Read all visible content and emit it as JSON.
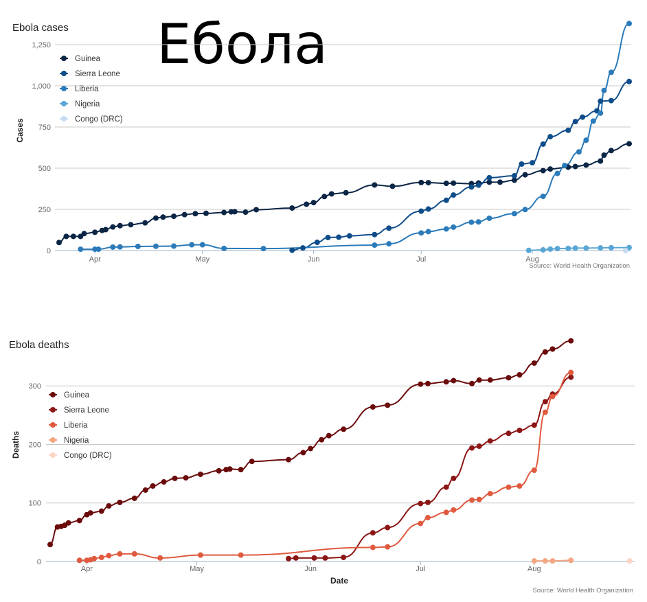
{
  "overlay_title": "Ебола",
  "chart_data": [
    {
      "type": "line",
      "title": "Ebola cases",
      "xlabel": "",
      "ylabel": "Cases",
      "ylim": [
        0,
        1250
      ],
      "yticks": [
        "0",
        "250",
        "500",
        "750",
        "1,000",
        "1,250"
      ],
      "x_tick_labels": [
        "Apr",
        "May",
        "Jun",
        "Jul",
        "Aug"
      ],
      "x_tick_dates": [
        "2014-04-01",
        "2014-05-01",
        "2014-06-01",
        "2014-07-01",
        "2014-08-01"
      ],
      "x_range": [
        "2014-03-22",
        "2014-08-28"
      ],
      "grid": true,
      "legend_position": "top-left",
      "source": "Source: World Health Organization",
      "series": [
        {
          "name": "Guinea",
          "color": "#0b2545",
          "points": [
            [
              "2014-03-22",
              49
            ],
            [
              "2014-03-24",
              86
            ],
            [
              "2014-03-26",
              86
            ],
            [
              "2014-03-28",
              86
            ],
            [
              "2014-03-29",
              103
            ],
            [
              "2014-04-01",
              111
            ],
            [
              "2014-04-03",
              122
            ],
            [
              "2014-04-04",
              127
            ],
            [
              "2014-04-06",
              143
            ],
            [
              "2014-04-08",
              151
            ],
            [
              "2014-04-11",
              157
            ],
            [
              "2014-04-15",
              168
            ],
            [
              "2014-04-18",
              197
            ],
            [
              "2014-04-20",
              203
            ],
            [
              "2014-04-23",
              208
            ],
            [
              "2014-04-26",
              218
            ],
            [
              "2014-04-29",
              224
            ],
            [
              "2014-05-02",
              226
            ],
            [
              "2014-05-07",
              231
            ],
            [
              "2014-05-09",
              235
            ],
            [
              "2014-05-10",
              236
            ],
            [
              "2014-05-13",
              233
            ],
            [
              "2014-05-16",
              248
            ],
            [
              "2014-05-26",
              258
            ],
            [
              "2014-05-30",
              281
            ],
            [
              "2014-06-01",
              291
            ],
            [
              "2014-06-04",
              328
            ],
            [
              "2014-06-06",
              344
            ],
            [
              "2014-06-10",
              351
            ],
            [
              "2014-06-18",
              398
            ],
            [
              "2014-06-23",
              390
            ],
            [
              "2014-07-01",
              413
            ],
            [
              "2014-07-03",
              412
            ],
            [
              "2014-07-08",
              408
            ],
            [
              "2014-07-10",
              409
            ],
            [
              "2014-07-15",
              406
            ],
            [
              "2014-07-17",
              410
            ],
            [
              "2014-07-20",
              415
            ],
            [
              "2014-07-23",
              415
            ],
            [
              "2014-07-27",
              427
            ],
            [
              "2014-07-30",
              460
            ],
            [
              "2014-08-04",
              485
            ],
            [
              "2014-08-06",
              495
            ],
            [
              "2014-08-11",
              506
            ],
            [
              "2014-08-13",
              510
            ],
            [
              "2014-08-16",
              519
            ],
            [
              "2014-08-20",
              543
            ],
            [
              "2014-08-21",
              579
            ],
            [
              "2014-08-23",
              607
            ],
            [
              "2014-08-28",
              648
            ]
          ]
        },
        {
          "name": "Sierra Leone",
          "color": "#0f4d8a",
          "points": [
            [
              "2014-05-26",
              2
            ],
            [
              "2014-05-29",
              16
            ],
            [
              "2014-06-02",
              50
            ],
            [
              "2014-06-05",
              79
            ],
            [
              "2014-06-08",
              81
            ],
            [
              "2014-06-11",
              89
            ],
            [
              "2014-06-18",
              97
            ],
            [
              "2014-06-22",
              136
            ],
            [
              "2014-07-01",
              239
            ],
            [
              "2014-07-03",
              252
            ],
            [
              "2014-07-08",
              305
            ],
            [
              "2014-07-10",
              337
            ],
            [
              "2014-07-15",
              386
            ],
            [
              "2014-07-17",
              397
            ],
            [
              "2014-07-20",
              442
            ],
            [
              "2014-07-27",
              454
            ],
            [
              "2014-07-29",
              525
            ],
            [
              "2014-08-01",
              533
            ],
            [
              "2014-08-04",
              646
            ],
            [
              "2014-08-06",
              691
            ],
            [
              "2014-08-11",
              730
            ],
            [
              "2014-08-13",
              783
            ],
            [
              "2014-08-15",
              810
            ],
            [
              "2014-08-19",
              848
            ],
            [
              "2014-08-20",
              907
            ],
            [
              "2014-08-23",
              910
            ],
            [
              "2014-08-28",
              1026
            ]
          ]
        },
        {
          "name": "Liberia",
          "color": "#2b7bba",
          "points": [
            [
              "2014-03-28",
              8
            ],
            [
              "2014-04-01",
              8
            ],
            [
              "2014-04-02",
              8
            ],
            [
              "2014-04-06",
              21
            ],
            [
              "4/8",
              0
            ],
            [
              "2014-04-08",
              22
            ],
            [
              "2014-04-13",
              25
            ],
            [
              "2014-04-18",
              26
            ],
            [
              "2014-04-23",
              27
            ],
            [
              "2014-04-28",
              35
            ],
            [
              "2014-05-01",
              35
            ],
            [
              "2014-05-07",
              13
            ],
            [
              "2014-05-18",
              12
            ],
            [
              "2014-06-18",
              33
            ],
            [
              "2014-06-22",
              41
            ],
            [
              "2014-07-01",
              107
            ],
            [
              "2014-07-03",
              115
            ],
            [
              "2014-07-08",
              131
            ],
            [
              "2014-07-10",
              142
            ],
            [
              "2014-07-15",
              172
            ],
            [
              "2014-07-17",
              174
            ],
            [
              "2014-07-20",
              196
            ],
            [
              "2014-07-27",
              224
            ],
            [
              "2014-07-30",
              249
            ],
            [
              "2014-08-04",
              329
            ],
            [
              "2014-08-08",
              468
            ],
            [
              "2014-08-10",
              516
            ],
            [
              "2014-08-14",
              599
            ],
            [
              "2014-08-16",
              670
            ],
            [
              "2014-08-18",
              786
            ],
            [
              "2014-08-20",
              834
            ],
            [
              "2014-08-21",
              972
            ],
            [
              "2014-08-23",
              1082
            ],
            [
              "2014-08-28",
              1378
            ]
          ]
        },
        {
          "name": "Nigeria",
          "color": "#5aa6d6",
          "points": [
            [
              "2014-07-31",
              1
            ],
            [
              "2014-08-04",
              4
            ],
            [
              "2014-08-06",
              9
            ],
            [
              "2014-08-08",
              12
            ],
            [
              "2014-08-11",
              13
            ],
            [
              "2014-08-13",
              15
            ],
            [
              "2014-08-16",
              15
            ],
            [
              "2014-08-20",
              16
            ],
            [
              "2014-08-23",
              17
            ],
            [
              "2014-08-28",
              18
            ]
          ]
        },
        {
          "name": "Congo (DRC)",
          "color": "#c6dbef",
          "points": [
            [
              "2014-08-27",
              0
            ]
          ]
        }
      ]
    },
    {
      "type": "line",
      "title": "Ebola deaths",
      "xlabel": "Date",
      "ylabel": "Deaths",
      "ylim": [
        0,
        380
      ],
      "yticks": [
        "0",
        "100",
        "200",
        "300"
      ],
      "x_tick_labels": [
        "Apr",
        "May",
        "Jun",
        "Jul",
        "Aug"
      ],
      "x_tick_dates": [
        "2014-04-01",
        "2014-05-01",
        "2014-06-01",
        "2014-07-01",
        "2014-08-01"
      ],
      "x_range": [
        "2014-03-22",
        "2014-08-28"
      ],
      "grid": true,
      "legend_position": "top-left",
      "source": "Source: World Health Organization",
      "series": [
        {
          "name": "Guinea",
          "color": "#6b0a0a",
          "points": [
            [
              "2014-03-22",
              29
            ],
            [
              "2014-03-24",
              59
            ],
            [
              "2014-03-25",
              60
            ],
            [
              "2014-03-26",
              62
            ],
            [
              "2014-03-27",
              66
            ],
            [
              "2014-03-30",
              70
            ],
            [
              "2014-04-01",
              80
            ],
            [
              "2014-04-02",
              83
            ],
            [
              "2014-04-05",
              86
            ],
            [
              "2014-04-07",
              95
            ],
            [
              "2014-04-10",
              101
            ],
            [
              "2014-04-14",
              108
            ],
            [
              "2014-04-17",
              122
            ],
            [
              "2014-04-19",
              129
            ],
            [
              "2014-04-22",
              136
            ],
            [
              "2014-04-25",
              142
            ],
            [
              "2014-04-28",
              143
            ],
            [
              "2014-05-02",
              149
            ],
            [
              "2014-05-07",
              155
            ],
            [
              "2014-05-09",
              157
            ],
            [
              "2014-05-10",
              158
            ],
            [
              "2014-05-13",
              157
            ],
            [
              "2014-05-16",
              171
            ],
            [
              "2014-05-26",
              174
            ],
            [
              "2014-05-30",
              186
            ],
            [
              "2014-06-01",
              193
            ],
            [
              "2014-06-04",
              208
            ],
            [
              "2014-06-06",
              215
            ],
            [
              "2014-06-10",
              226
            ],
            [
              "2014-06-18",
              264
            ],
            [
              "2014-06-22",
              267
            ],
            [
              "2014-07-01",
              303
            ],
            [
              "2014-07-03",
              304
            ],
            [
              "2014-07-08",
              307
            ],
            [
              "2014-07-10",
              309
            ],
            [
              "2014-07-15",
              304
            ],
            [
              "2014-07-17",
              310
            ],
            [
              "2014-07-20",
              310
            ],
            [
              "2014-07-25",
              314
            ],
            [
              "2014-07-28",
              319
            ],
            [
              "2014-08-01",
              339
            ],
            [
              "2014-08-04",
              358
            ],
            [
              "2014-08-06",
              363
            ],
            [
              "2014-08-11",
              377
            ]
          ]
        },
        {
          "name": "Sierra Leone",
          "color": "#8c1515",
          "points": [
            [
              "2014-05-26",
              5
            ],
            [
              "2014-05-28",
              6
            ],
            [
              "2014-06-02",
              6
            ],
            [
              "2014-06-05",
              6
            ],
            [
              "2014-06-10",
              7
            ],
            [
              "2014-06-18",
              49
            ],
            [
              "2014-06-22",
              58
            ],
            [
              "2014-07-01",
              99
            ],
            [
              "2014-07-03",
              101
            ],
            [
              "2014-07-08",
              127
            ],
            [
              "2014-07-10",
              142
            ],
            [
              "2014-07-15",
              194
            ],
            [
              "2014-07-17",
              197
            ],
            [
              "2014-07-20",
              206
            ],
            [
              "2014-07-25",
              219
            ],
            [
              "2014-07-28",
              224
            ],
            [
              "2014-08-01",
              233
            ],
            [
              "2014-08-04",
              273
            ],
            [
              "2014-08-06",
              286
            ],
            [
              "2014-08-11",
              315
            ]
          ]
        },
        {
          "name": "Liberia",
          "color": "#e05a3f",
          "points": [
            [
              "2014-03-30",
              2
            ],
            [
              "2014-04-01",
              2
            ],
            [
              "2014-04-02",
              3
            ],
            [
              "2014-04-03",
              5
            ],
            [
              "2014-04-05",
              7
            ],
            [
              "2014-04-07",
              10
            ],
            [
              "2014-04-10",
              13
            ],
            [
              "2014-04-14",
              13
            ],
            [
              "2014-04-21",
              6
            ],
            [
              "2014-05-02",
              11
            ],
            [
              "2014-05-13",
              11
            ],
            [
              "2014-06-18",
              24
            ],
            [
              "2014-06-22",
              25
            ],
            [
              "2014-07-01",
              65
            ],
            [
              "2014-07-03",
              75
            ],
            [
              "2014-07-08",
              84
            ],
            [
              "2014-07-10",
              88
            ],
            [
              "2014-07-15",
              105
            ],
            [
              "2014-07-17",
              106
            ],
            [
              "2014-07-20",
              116
            ],
            [
              "2014-07-25",
              127
            ],
            [
              "2014-07-28",
              129
            ],
            [
              "2014-08-01",
              156
            ],
            [
              "2014-08-04",
              255
            ],
            [
              "2014-08-06",
              282
            ],
            [
              "2014-08-11",
              323
            ]
          ]
        },
        {
          "name": "Nigeria",
          "color": "#f4a582",
          "points": [
            [
              "2014-08-01",
              1
            ],
            [
              "2014-08-04",
              1
            ],
            [
              "2014-08-06",
              1
            ],
            [
              "2014-08-11",
              2
            ]
          ]
        },
        {
          "name": "Congo (DRC)",
          "color": "#fcd5c5",
          "points": [
            [
              "2014-08-27",
              1
            ]
          ]
        }
      ]
    }
  ]
}
